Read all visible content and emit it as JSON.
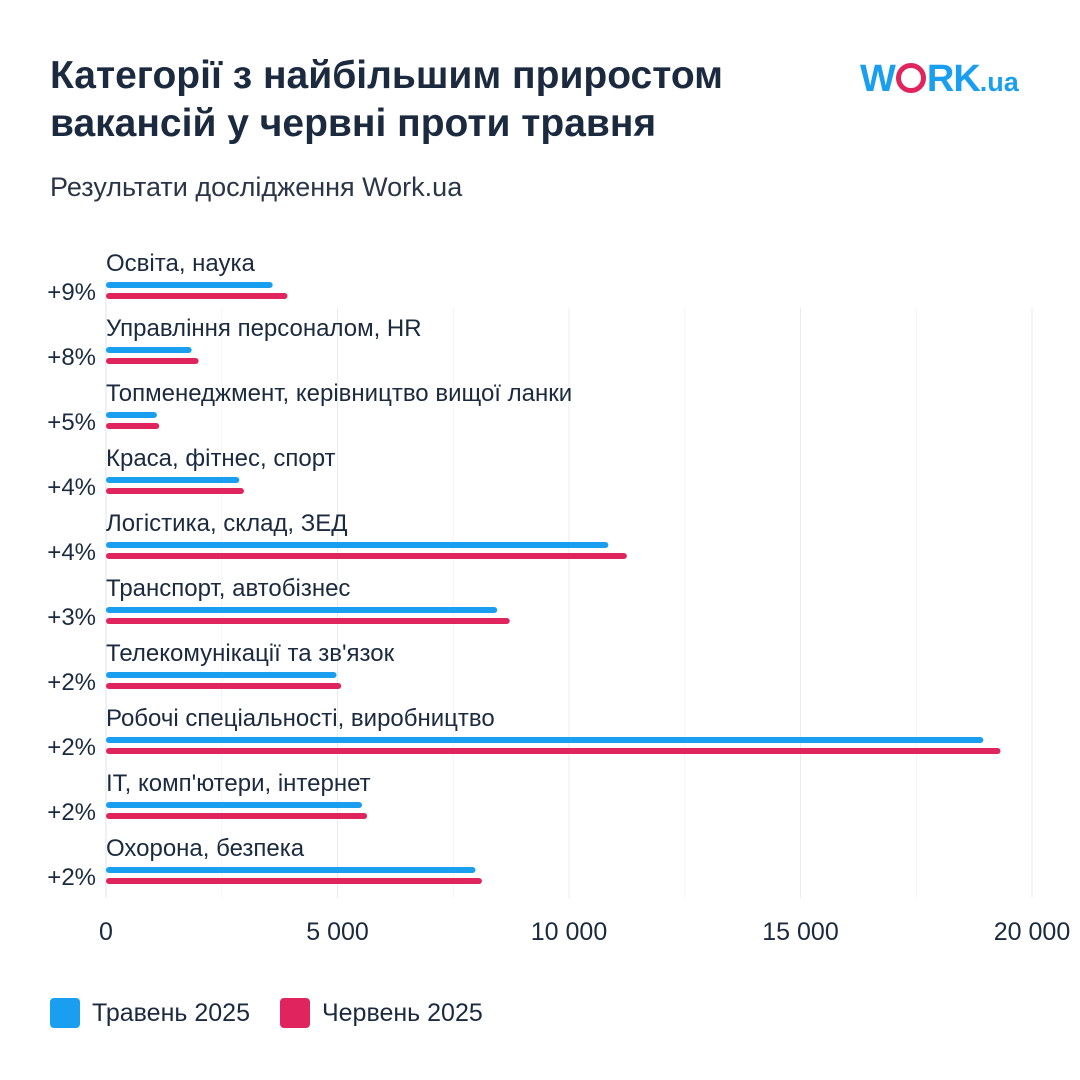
{
  "header": {
    "title": "Категорії з найбільшим приростом вакансій у червні проти травня",
    "subtitle": "Результати дослідження Work.ua"
  },
  "logo": {
    "text_before": "W",
    "text_after": "RK",
    "suffix": ".ua",
    "brand_color": "#1a9ff0",
    "ring_color": "#e0245e"
  },
  "chart_data": {
    "type": "bar",
    "orientation": "horizontal",
    "title": "Категорії з найбільшим приростом вакансій у червні проти травня",
    "subtitle": "Результати дослідження Work.ua",
    "categories": [
      "Освіта, наука",
      "Управління персоналом, HR",
      "Топменеджмент, керівництво вищої ланки",
      "Краса, фітнес, спорт",
      "Логістика, склад, ЗЕД",
      "Транспорт, автобізнес",
      "Телекомунікації та зв'язок",
      "Робочі спеціальності, виробництво",
      "IT, комп'ютери, інтернет",
      "Охорона, безпека"
    ],
    "growth_labels": [
      "+9%",
      "+8%",
      "+5%",
      "+4%",
      "+4%",
      "+3%",
      "+2%",
      "+2%",
      "+2%",
      "+2%"
    ],
    "series": [
      {
        "name": "Травень 2025",
        "color": "#1a9ff0",
        "values": [
          3600,
          1850,
          1100,
          2880,
          10850,
          8450,
          4980,
          18950,
          5530,
          7980
        ]
      },
      {
        "name": "Червень 2025",
        "color": "#e0245e",
        "values": [
          3920,
          2000,
          1150,
          2980,
          11250,
          8720,
          5080,
          19320,
          5640,
          8120
        ]
      }
    ],
    "xlim": [
      0,
      20000
    ],
    "xticks": [
      0,
      5000,
      10000,
      15000,
      20000
    ],
    "xtick_labels": [
      "0",
      "5 000",
      "10 000",
      "15 000",
      "20 000"
    ],
    "grid": true,
    "legend_position": "bottom-left"
  }
}
